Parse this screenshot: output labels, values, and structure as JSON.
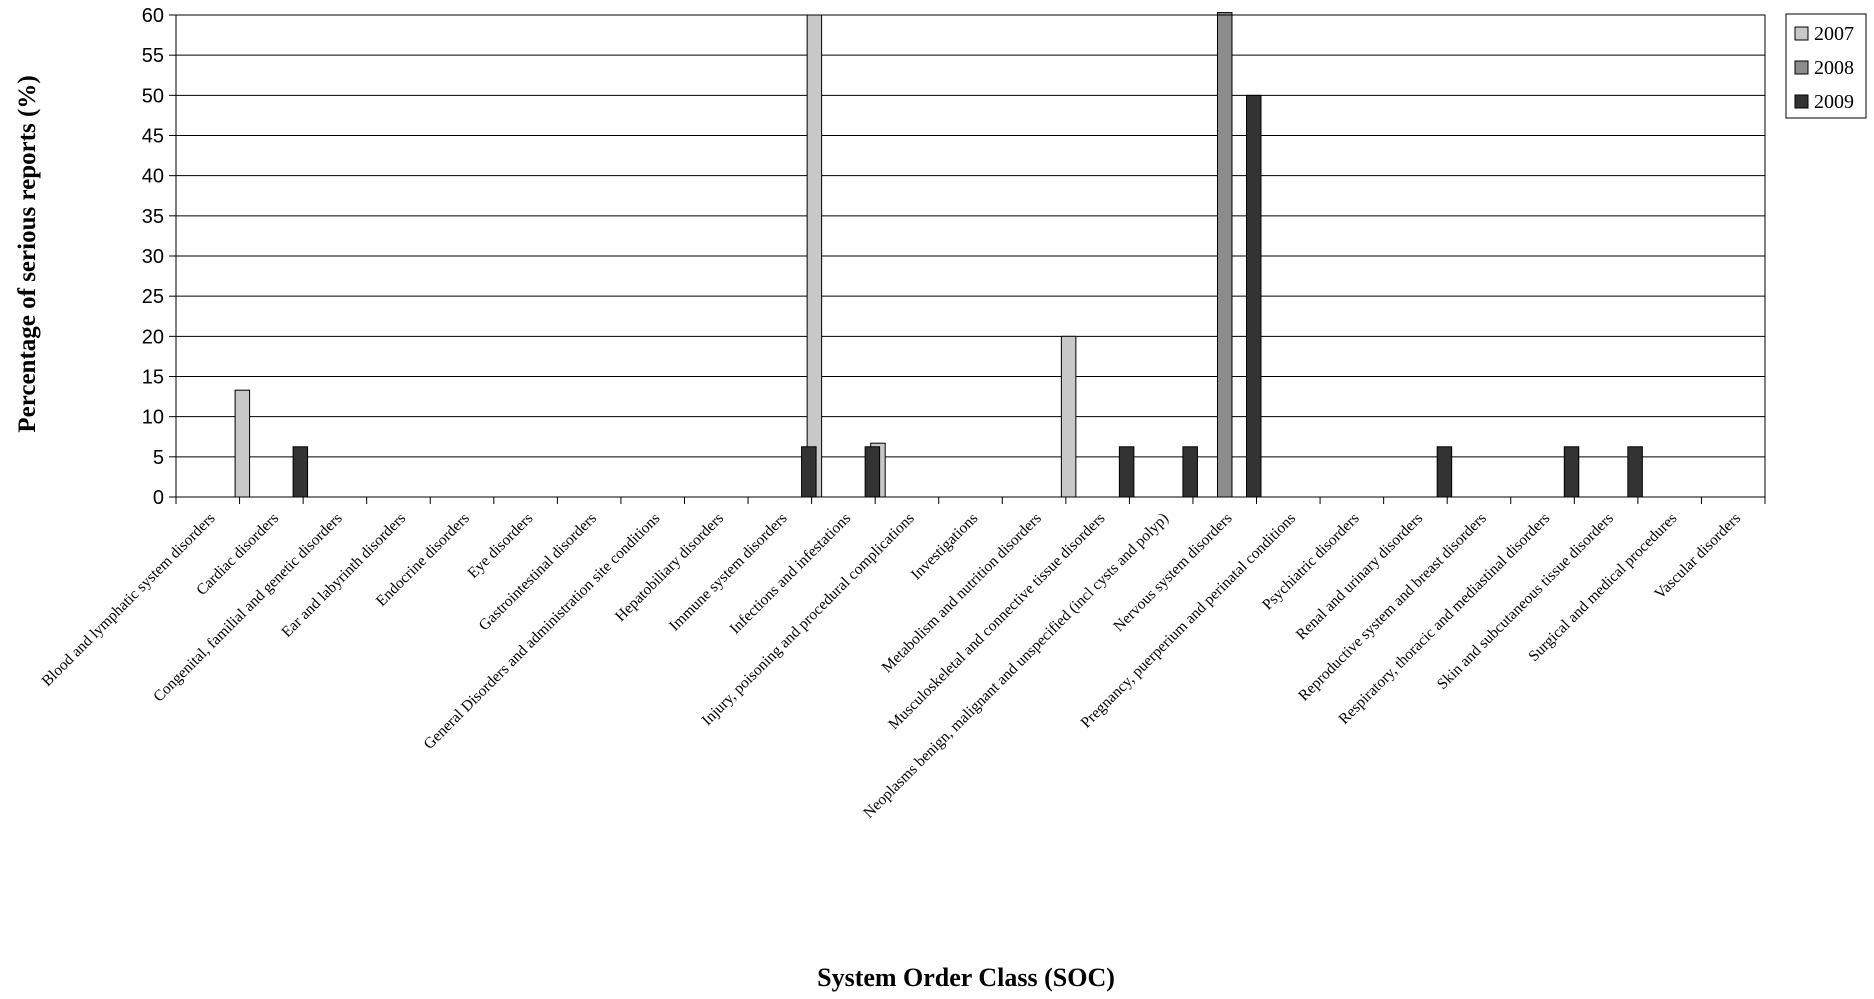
{
  "chart_data": {
    "type": "bar",
    "title": "",
    "xlabel": "System Order Class (SOC)",
    "ylabel": "Percentage of serious reports (%)",
    "ylim": [
      0,
      60
    ],
    "yticks": [
      0,
      5,
      10,
      15,
      20,
      25,
      30,
      35,
      40,
      45,
      50,
      55,
      60
    ],
    "grid": true,
    "legend_position": "top-right",
    "categories": [
      "Blood and lymphatic system disorders",
      "Cardiac disorders",
      "Congenital, familial and genetic disorders",
      "Ear and labyrinth disorders",
      "Endocrine disorders",
      "Eye disorders",
      "Gastrointestinal disorders",
      "General Disorders and administration site conditions",
      "Hepatobiliary disorders",
      "Immune system disorders",
      "Infections and infestations",
      "Injury, poisoning and procedural complications",
      "Investigations",
      "Metabolism and nutrition disorders",
      "Musculoskeletal and connective tissue disorders",
      "Neoplasms benign, malignant and unspecified (incl cysts and polyp)",
      "Nervous system disorders",
      "Pregnancy, puerperium and perinatal conditions",
      "Psychiatric disorders",
      "Renal and urinary disorders",
      "Reproductive system and breast disorders",
      "Respiratory, thoracic and mediastinal disorders",
      "Skin and subcutaneous tissue disorders",
      "Surgical and medical procedures",
      "Vascular disorders"
    ],
    "series": [
      {
        "name": "2007",
        "color": "#c8c8c8",
        "values": [
          0,
          13.3,
          0,
          0,
          0,
          0,
          0,
          0,
          0,
          0,
          60,
          6.7,
          0,
          0,
          20,
          0,
          0,
          0,
          0,
          0,
          0,
          0,
          0,
          0,
          0
        ]
      },
      {
        "name": "2008",
        "color": "#8c8c8c",
        "values": [
          0,
          0,
          0,
          0,
          0,
          0,
          0,
          0,
          0,
          0,
          0,
          0,
          0,
          0,
          0,
          0,
          60.3,
          0,
          0,
          0,
          0,
          0,
          0,
          0,
          0
        ]
      },
      {
        "name": "2009",
        "color": "#333333",
        "values": [
          0,
          6.25,
          0,
          0,
          0,
          0,
          0,
          0,
          0,
          6.25,
          6.25,
          0,
          0,
          0,
          6.25,
          6.25,
          50,
          0,
          0,
          6.25,
          0,
          6.25,
          6.25,
          0,
          0
        ]
      }
    ]
  }
}
